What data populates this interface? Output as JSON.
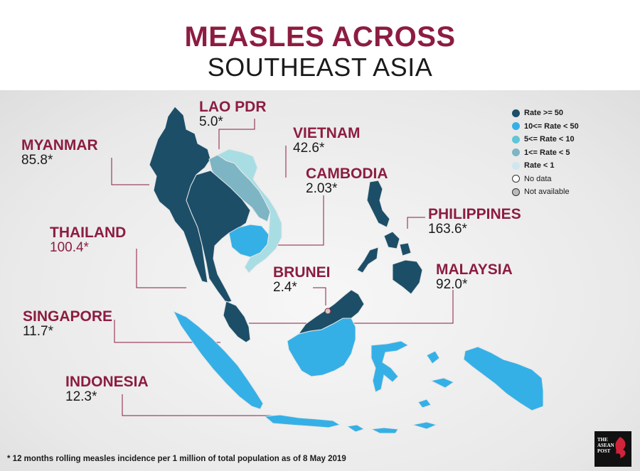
{
  "title_line1": "MEASLES ACROSS",
  "title_line2": "SOUTHEAST ASIA",
  "colors": {
    "rate_ge_50": "#1c4e68",
    "rate_10_50": "#35b0e6",
    "rate_5_10": "#5ec6d7",
    "rate_1_5": "#7db5c4",
    "rate_lt_1": "#cfe6ef",
    "accent": "#8c1d40"
  },
  "legend": [
    {
      "label": "Rate >= 50",
      "color": "#1c4e68"
    },
    {
      "label": "10<= Rate < 50",
      "color": "#35b0e6"
    },
    {
      "label": "5<= Rate < 10",
      "color": "#5ec6d7"
    },
    {
      "label": "1<= Rate < 5",
      "color": "#7db5c4"
    },
    {
      "label": "Rate < 1",
      "color": "#cfe6ef"
    },
    {
      "label": "No data",
      "color": "#ffffff"
    },
    {
      "label": "Not available",
      "color": "#bbbbbb"
    }
  ],
  "countries": {
    "lao": {
      "name": "LAO PDR",
      "value": "5.0*"
    },
    "vietnam": {
      "name": "VIETNAM",
      "value": "42.6*"
    },
    "myanmar": {
      "name": "MYANMAR",
      "value": "85.8*"
    },
    "cambodia": {
      "name": "CAMBODIA",
      "value": "2.03*"
    },
    "philippines": {
      "name": "PHILIPPINES",
      "value": "163.6*"
    },
    "thailand": {
      "name": "THAILAND",
      "value": "100.4*"
    },
    "malaysia": {
      "name": "MALAYSIA",
      "value": "92.0*"
    },
    "brunei": {
      "name": "BRUNEI",
      "value": "2.4*"
    },
    "singapore": {
      "name": "SINGAPORE",
      "value": "11.7*"
    },
    "indonesia": {
      "name": "INDONESIA",
      "value": "12.3*"
    }
  },
  "footnote": "* 12 months rolling measles incidence per 1 million of total population as of 8 May 2019",
  "logo_text": [
    "THE",
    "ASEAN",
    "POST"
  ]
}
